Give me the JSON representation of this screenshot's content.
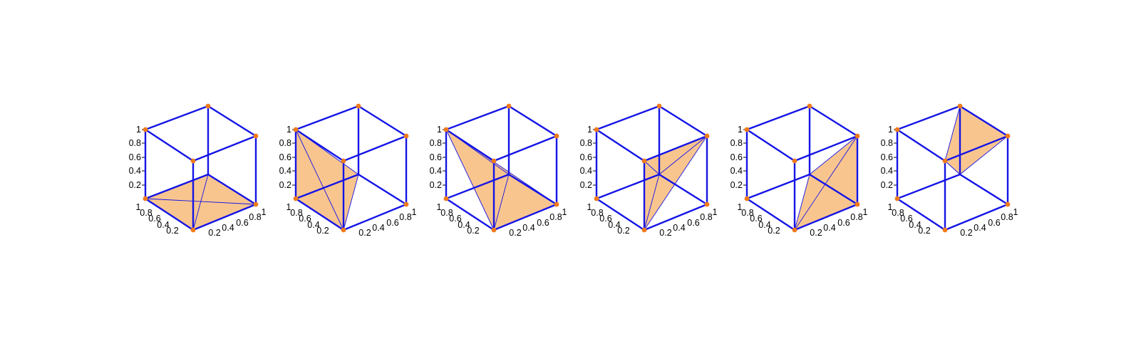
{
  "colors": {
    "background": "#ffffff",
    "edge": "#1414e6",
    "face": "#f8b672",
    "face_overlap": "#7b5a87",
    "vertex": "#f07a1a",
    "text": "#000000"
  },
  "axes": {
    "z_ticks": [
      "0.2",
      "0.4",
      "0.6",
      "0.8",
      "1"
    ],
    "y_ticks": [
      "1",
      "0.8",
      "0.6",
      "0.4",
      "0.2"
    ],
    "x_ticks": [
      "0.2",
      "0.4",
      "0.6",
      "0.8",
      "1"
    ]
  },
  "panels": [
    {
      "id": "panel-1",
      "tetra": [
        "A",
        "H",
        "B",
        "C"
      ]
    },
    {
      "id": "panel-2",
      "tetra": [
        "A",
        "D",
        "B",
        "H"
      ]
    },
    {
      "id": "panel-3",
      "tetra": [
        "D",
        "H",
        "B",
        "C"
      ]
    },
    {
      "id": "panel-4",
      "tetra": [
        "B",
        "E",
        "F",
        "H"
      ]
    },
    {
      "id": "panel-5",
      "tetra": [
        "C",
        "F",
        "B",
        "H"
      ]
    },
    {
      "id": "panel-6",
      "tetra": [
        "E",
        "G",
        "F",
        "H"
      ]
    }
  ]
}
